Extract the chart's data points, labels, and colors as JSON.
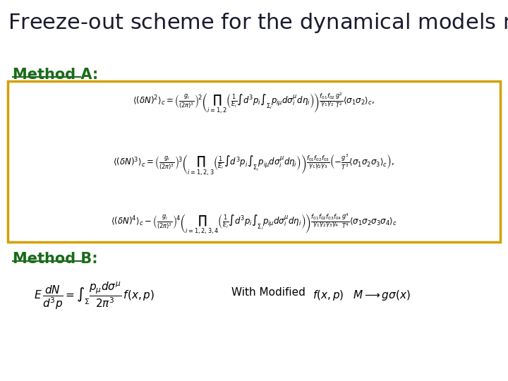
{
  "title_bg": "#6f9bcd",
  "title_fontsize": 22,
  "title_color": "#1a1a2e",
  "bg_color": "#ffffff",
  "method_a_label": "Method A:",
  "method_b_label": "Method B:",
  "method_label_color": "#1a6b1a",
  "box_color": "#d4a000",
  "method_fontsize": 15
}
